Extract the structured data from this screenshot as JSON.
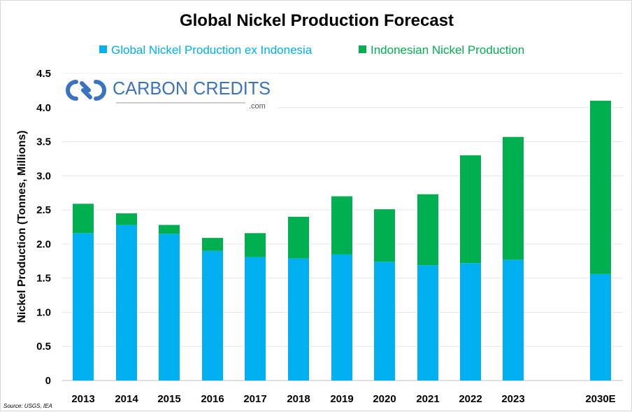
{
  "chart_data": {
    "type": "bar",
    "stacked": true,
    "title": "Global Nickel Production Forecast",
    "xlabel": "",
    "ylabel": "Nickel Production (Tonnes, Millions)",
    "ylim": [
      0,
      4.5
    ],
    "yticks": [
      "0",
      "0.5",
      "1.0",
      "1.5",
      "2.0",
      "2.5",
      "3.0",
      "3.5",
      "4.0",
      "4.5"
    ],
    "grid": true,
    "legend_position": "top",
    "categories": [
      "2013",
      "2014",
      "2015",
      "2016",
      "2017",
      "2018",
      "2019",
      "2020",
      "2021",
      "2022",
      "2023",
      "2030E"
    ],
    "series": [
      {
        "name": "Global Nickel Production ex Indonesia",
        "color": "#00B0F0",
        "values": [
          2.16,
          2.28,
          2.15,
          1.9,
          1.81,
          1.79,
          1.85,
          1.74,
          1.69,
          1.72,
          1.77,
          1.56
        ]
      },
      {
        "name": "Indonesian Nickel Production",
        "color": "#00B050",
        "values": [
          0.43,
          0.17,
          0.13,
          0.19,
          0.35,
          0.61,
          0.85,
          0.77,
          1.04,
          1.58,
          1.8,
          2.54
        ]
      }
    ],
    "source": "Source: USGS, IEA"
  },
  "logo": {
    "text": "CARBON CREDITS",
    "suffix": ".com",
    "color": "#3a73c2"
  }
}
